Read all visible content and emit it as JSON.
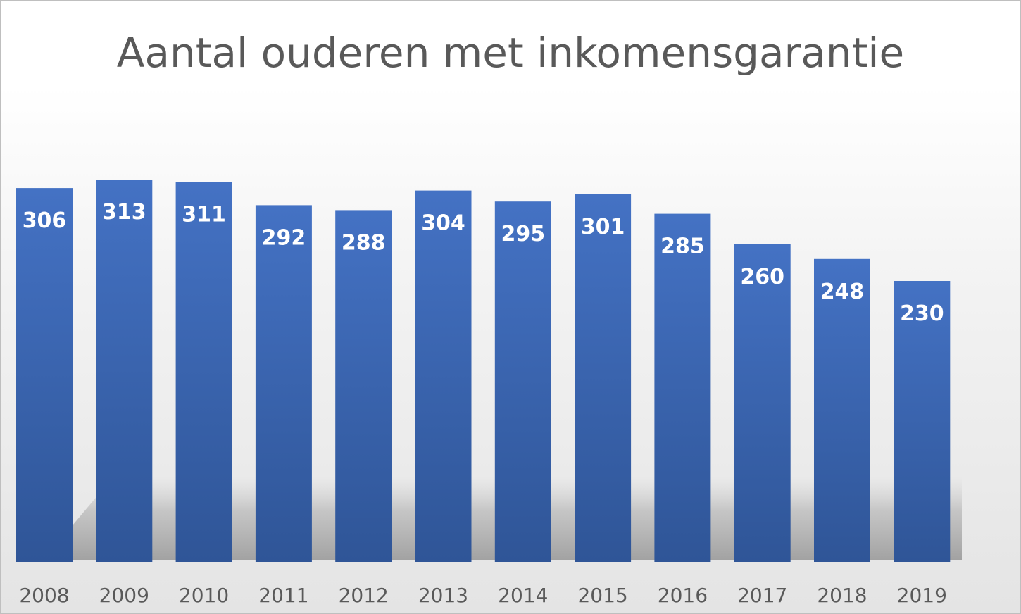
{
  "chart_data": {
    "type": "bar",
    "title": "Aantal ouderen met inkomensgarantie",
    "xlabel": "",
    "ylabel": "",
    "categories": [
      "2008",
      "2009",
      "2010",
      "2011",
      "2012",
      "2013",
      "2014",
      "2015",
      "2016",
      "2017",
      "2018",
      "2019"
    ],
    "values": [
      306,
      313,
      311,
      292,
      288,
      304,
      295,
      301,
      285,
      260,
      248,
      230
    ],
    "ylim": [
      0,
      313
    ],
    "grid": false,
    "legend": "none",
    "data_labels": "inside-top",
    "bar_color_top": "#4472c4",
    "bar_color_bottom": "#2f5597"
  }
}
